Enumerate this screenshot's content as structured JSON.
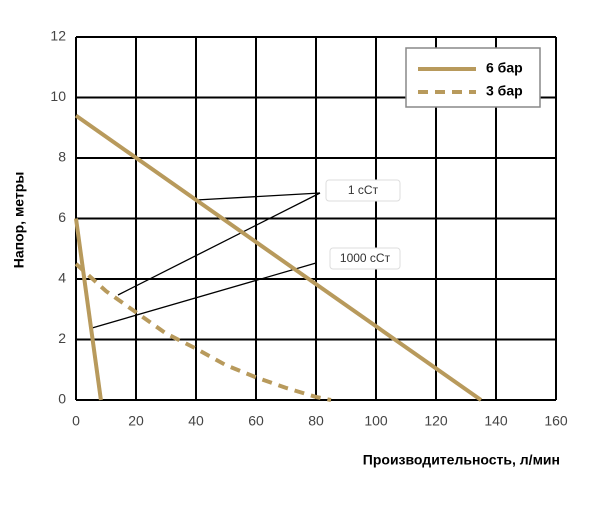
{
  "chart_data": {
    "type": "line",
    "x_label": "Производительность, л/мин",
    "y_label": "Напор, метры",
    "xlim": [
      0,
      160
    ],
    "xticks": [
      0,
      20,
      40,
      60,
      80,
      100,
      120,
      140,
      160
    ],
    "ylim": [
      0,
      12
    ],
    "yticks": [
      0,
      2,
      4,
      6,
      8,
      10,
      12
    ],
    "grid": true,
    "series": [
      {
        "name": "6 бар",
        "color": "#b89a5c",
        "dashed": false,
        "curves": [
          {
            "x": [
              0,
              135
            ],
            "values": [
              9.4,
              0
            ]
          },
          {
            "x": [
              0,
              8.3
            ],
            "values": [
              6,
              0
            ]
          }
        ]
      },
      {
        "name": "3 бар",
        "color": "#b89a5c",
        "dashed": true,
        "curves": [
          {
            "x": [
              0,
              10,
              20,
              30,
              40,
              50,
              60,
              70,
              80,
              85
            ],
            "values": [
              4.5,
              3.6,
              2.9,
              2.2,
              1.7,
              1.15,
              0.75,
              0.4,
              0.1,
              0
            ]
          }
        ]
      }
    ],
    "legend": "upper right",
    "annotations": [
      "1 сСт",
      "1000 сСт"
    ]
  }
}
